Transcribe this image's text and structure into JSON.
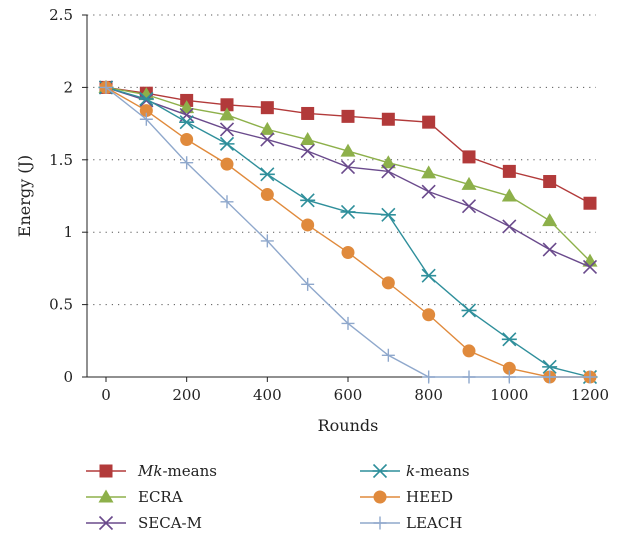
{
  "chart_data": {
    "type": "line",
    "xlabel": "Rounds",
    "ylabel": "Energy (J)",
    "xlim": [
      0,
      1200
    ],
    "ylim": [
      0,
      2.5
    ],
    "x": [
      0,
      100,
      200,
      300,
      400,
      500,
      600,
      700,
      800,
      900,
      1000,
      1100,
      1200
    ],
    "x_ticks": [
      "0",
      "200",
      "400",
      "600",
      "800",
      "1000",
      "1200"
    ],
    "y_ticks": [
      "0",
      "0.5",
      "1",
      "1.5",
      "2",
      "2.5"
    ],
    "grid": "horizontal-dotted",
    "legend_position": "bottom",
    "series": [
      {
        "name": "Mk-means",
        "legend_italic": "Mk",
        "legend_rest": "-means",
        "color": "#b23a3a",
        "marker": "square",
        "values": [
          2.0,
          1.96,
          1.91,
          1.88,
          1.86,
          1.82,
          1.8,
          1.78,
          1.76,
          1.52,
          1.42,
          1.35,
          1.2
        ]
      },
      {
        "name": "ECRA",
        "legend_italic": "",
        "legend_rest": "ECRA",
        "color": "#8db04a",
        "marker": "triangle",
        "values": [
          2.0,
          1.95,
          1.86,
          1.81,
          1.71,
          1.64,
          1.56,
          1.48,
          1.41,
          1.33,
          1.25,
          1.08,
          0.8
        ]
      },
      {
        "name": "SECA-M",
        "legend_italic": "",
        "legend_rest": "SECA-M",
        "color": "#6a4a8c",
        "marker": "x",
        "values": [
          2.0,
          1.91,
          1.81,
          1.71,
          1.64,
          1.56,
          1.45,
          1.42,
          1.28,
          1.18,
          1.04,
          0.88,
          0.76
        ]
      },
      {
        "name": "k-means",
        "legend_italic": "k",
        "legend_rest": "-means",
        "color": "#2f8f9b",
        "marker": "asterisk",
        "values": [
          2.0,
          1.92,
          1.76,
          1.61,
          1.4,
          1.22,
          1.14,
          1.12,
          0.7,
          0.46,
          0.26,
          0.07,
          0.0
        ]
      },
      {
        "name": "HEED",
        "legend_italic": "",
        "legend_rest": "HEED",
        "color": "#e08a3c",
        "marker": "circle",
        "values": [
          2.0,
          1.84,
          1.64,
          1.47,
          1.26,
          1.05,
          0.86,
          0.65,
          0.43,
          0.18,
          0.06,
          0.0,
          0.0
        ]
      },
      {
        "name": "LEACH",
        "legend_italic": "",
        "legend_rest": "LEACH",
        "color": "#8fa8cc",
        "marker": "plus",
        "values": [
          2.0,
          1.78,
          1.48,
          1.21,
          0.94,
          0.64,
          0.37,
          0.15,
          0.0,
          0.0,
          0.0,
          0.0,
          0.0
        ]
      }
    ]
  }
}
